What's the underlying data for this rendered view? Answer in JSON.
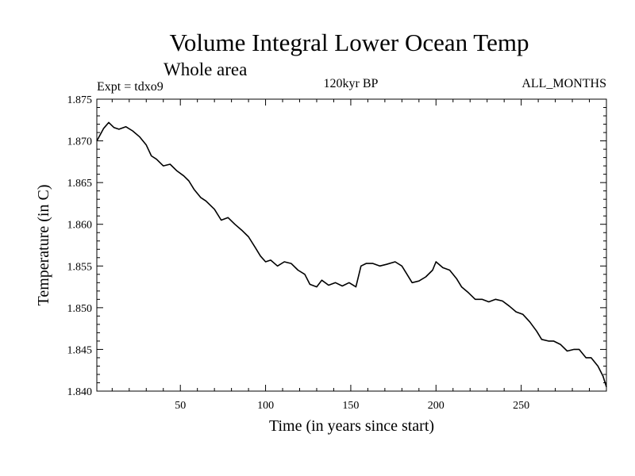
{
  "chart_data": {
    "type": "line",
    "title": "Volume Integral Lower Ocean Temp",
    "subtitle": "Whole area",
    "header_left": "Expt = tdxo9",
    "header_center": "120kyr BP",
    "header_right": "ALL_MONTHS",
    "xlabel": "Time (in years since start)",
    "ylabel": "Temperature (in C)",
    "xlim": [
      1,
      300
    ],
    "ylim": [
      1.84,
      1.875
    ],
    "xticks": [
      50,
      100,
      150,
      200,
      250
    ],
    "yticks": [
      "1.840",
      "1.845",
      "1.850",
      "1.855",
      "1.860",
      "1.865",
      "1.870",
      "1.875"
    ],
    "grid": false,
    "series": [
      {
        "color": "#000000",
        "x": [
          1,
          5,
          8,
          11,
          14,
          18,
          22,
          26,
          30,
          33,
          36,
          40,
          44,
          48,
          52,
          55,
          58,
          62,
          65,
          70,
          74,
          78,
          82,
          86,
          90,
          94,
          97,
          100,
          103,
          107,
          111,
          115,
          119,
          123,
          126,
          130,
          133,
          137,
          141,
          145,
          149,
          153,
          156,
          159,
          163,
          167,
          171,
          176,
          180,
          183,
          186,
          190,
          194,
          198,
          200,
          204,
          208,
          212,
          215,
          219,
          223,
          227,
          231,
          235,
          239,
          243,
          247,
          251,
          255,
          259,
          262,
          266,
          269,
          273,
          277,
          281,
          284,
          288,
          291,
          295,
          298,
          300
        ],
        "y": [
          1.87,
          1.8715,
          1.8722,
          1.8716,
          1.8714,
          1.8717,
          1.8712,
          1.8705,
          1.8695,
          1.8682,
          1.8678,
          1.867,
          1.8672,
          1.8664,
          1.8658,
          1.8652,
          1.8642,
          1.8632,
          1.8628,
          1.8618,
          1.8605,
          1.8608,
          1.86,
          1.8593,
          1.8585,
          1.8572,
          1.8562,
          1.8555,
          1.8557,
          1.855,
          1.8555,
          1.8553,
          1.8545,
          1.854,
          1.8528,
          1.8525,
          1.8533,
          1.8527,
          1.853,
          1.8526,
          1.853,
          1.8525,
          1.855,
          1.8553,
          1.8553,
          1.855,
          1.8552,
          1.8555,
          1.855,
          1.854,
          1.853,
          1.8532,
          1.8537,
          1.8545,
          1.8555,
          1.8548,
          1.8545,
          1.8535,
          1.8525,
          1.8518,
          1.851,
          1.851,
          1.8507,
          1.851,
          1.8508,
          1.8502,
          1.8495,
          1.8492,
          1.8483,
          1.8472,
          1.8462,
          1.846,
          1.846,
          1.8456,
          1.8448,
          1.845,
          1.845,
          1.844,
          1.844,
          1.843,
          1.8418,
          1.8405
        ]
      }
    ]
  }
}
